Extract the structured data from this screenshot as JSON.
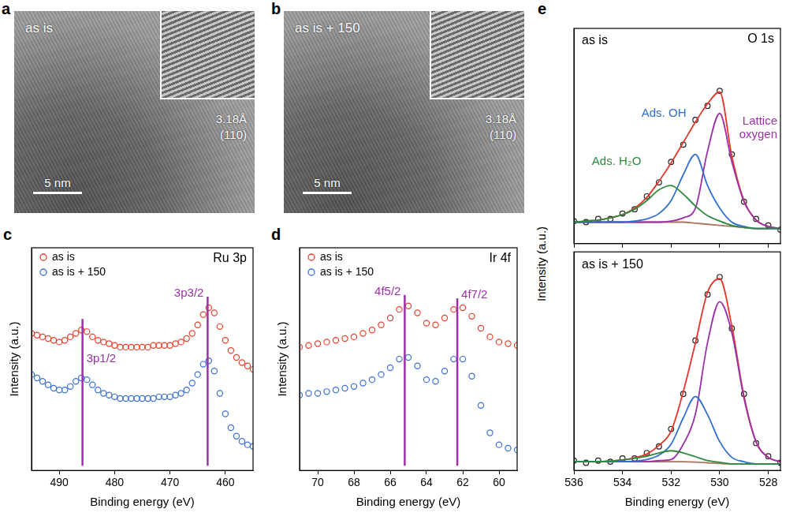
{
  "image_panels": [
    {
      "panel": "a",
      "label": "as is",
      "scale_bar": "5 nm",
      "inset_spacing": "3.18Å",
      "inset_plane": "(110)"
    },
    {
      "panel": "b",
      "label": "as is + 150",
      "scale_bar": "5 nm",
      "inset_spacing": "3.18Å",
      "inset_plane": "(110)"
    }
  ],
  "chart_data": [
    {
      "panel": "c",
      "type": "scatter",
      "title": "Ru 3p",
      "xlabel": "Binding energy (eV)",
      "ylabel": "Intensity (a.u.)",
      "x": [
        495,
        494,
        493,
        492,
        491,
        490,
        489,
        488,
        487,
        486,
        485,
        484,
        483,
        482,
        481,
        480,
        479,
        478,
        477,
        476,
        475,
        474,
        473,
        472,
        471,
        470,
        469,
        468,
        467,
        466,
        465,
        464,
        463,
        462,
        461,
        460,
        459,
        458,
        457,
        456,
        455
      ],
      "xlim": [
        495,
        455
      ],
      "xticks": [
        490,
        480,
        470,
        460
      ],
      "ylim": [
        0,
        130
      ],
      "grid": false,
      "tick_labels": "x",
      "legend": "upper left",
      "marker": "open circle",
      "series": [
        {
          "name": "as is",
          "color": "#e8402a",
          "values": [
            80,
            79,
            78,
            77,
            76,
            75,
            76,
            78,
            80,
            82,
            81,
            78,
            76,
            75,
            74,
            73,
            72,
            72,
            72,
            72,
            72,
            72,
            73,
            73,
            73,
            73,
            74,
            75,
            77,
            80,
            85,
            91,
            95,
            92,
            84,
            76,
            70,
            66,
            63,
            61,
            59
          ]
        },
        {
          "name": "as is + 150",
          "color": "#3a6fd6",
          "values": [
            56,
            54,
            52,
            50,
            48,
            47,
            47,
            49,
            52,
            54,
            53,
            50,
            47,
            45,
            44,
            43,
            42,
            42,
            42,
            42,
            42,
            42,
            42,
            43,
            43,
            43,
            44,
            45,
            47,
            51,
            56,
            62,
            64,
            58,
            45,
            33,
            25,
            20,
            17,
            15,
            14
          ]
        }
      ],
      "annotations": [
        {
          "x": 485.8,
          "text": "3p1/2",
          "color": "#9b30a8"
        },
        {
          "x": 463.2,
          "text": "3p3/2",
          "color": "#9b30a8"
        }
      ]
    },
    {
      "panel": "d",
      "type": "scatter",
      "title": "Ir 4f",
      "xlabel": "Binding energy (eV)",
      "ylabel": "Intensity (a.u.)",
      "x": [
        71,
        70.5,
        70,
        69.5,
        69,
        68.5,
        68,
        67.5,
        67,
        66.5,
        66,
        65.5,
        65,
        64.5,
        64,
        63.5,
        63,
        62.5,
        62,
        61.5,
        61,
        60.5,
        60,
        59.5,
        59
      ],
      "xlim": [
        71,
        59
      ],
      "xticks": [
        70,
        68,
        66,
        64,
        62,
        60
      ],
      "ylim": [
        0,
        130
      ],
      "grid": false,
      "tick_labels": "x",
      "legend": "upper left",
      "marker": "open circle",
      "series": [
        {
          "name": "as is",
          "color": "#e8402a",
          "values": [
            72,
            73,
            74,
            75,
            76,
            77,
            78,
            80,
            82,
            85,
            89,
            94,
            96,
            92,
            86,
            85,
            89,
            94,
            95,
            90,
            83,
            78,
            75,
            74,
            73
          ]
        },
        {
          "name": "as is + 150",
          "color": "#3a6fd6",
          "values": [
            44,
            45,
            45,
            46,
            47,
            48,
            49,
            51,
            53,
            56,
            60,
            65,
            66,
            61,
            53,
            52,
            58,
            65,
            65,
            55,
            38,
            22,
            15,
            13,
            12
          ]
        }
      ],
      "annotations": [
        {
          "x": 65.2,
          "text": "4f5/2",
          "color": "#9b30a8"
        },
        {
          "x": 62.3,
          "text": "4f7/2",
          "color": "#9b30a8"
        }
      ]
    },
    {
      "panel": "e",
      "type": "line",
      "title": "O 1s",
      "subtitle": "as is",
      "ylabel": "Intensity (a.u.)",
      "x": [
        536,
        535.5,
        535,
        534.5,
        534,
        533.5,
        533,
        532.5,
        532,
        531.5,
        531,
        530.5,
        530,
        529.5,
        529,
        528.5,
        528,
        527.5
      ],
      "xlim": [
        536,
        527.5
      ],
      "xticks": [
        536,
        534,
        532,
        530,
        528
      ],
      "ylim": [
        0,
        100
      ],
      "grid": false,
      "tick_labels": false,
      "series": [
        {
          "name": "Ads. H₂O",
          "color": "#2e8b3c",
          "type": "line",
          "line_style": "solid",
          "values": [
            10,
            10.5,
            11,
            12,
            13.5,
            16,
            20,
            25,
            27,
            23,
            17.5,
            13,
            10.5,
            8.5,
            7.5,
            7,
            7,
            7
          ]
        },
        {
          "name": "Ads. OH",
          "color": "#2f6fd0",
          "type": "line",
          "line_style": "solid",
          "values": [
            10,
            10,
            10,
            10,
            10,
            10.5,
            11.5,
            14,
            20,
            32,
            41.5,
            27,
            16.5,
            10,
            8,
            7,
            7,
            7
          ]
        },
        {
          "name": "Lattice oxygen",
          "color": "#9b30a8",
          "type": "line",
          "line_style": "solid",
          "values": [
            10,
            10,
            10,
            10,
            10,
            10,
            10,
            10,
            10.5,
            12,
            16.5,
            43,
            60.5,
            38,
            19.5,
            11,
            8,
            7
          ]
        },
        {
          "color": "#a9745f",
          "type": "line",
          "line_style": "solid",
          "values": [
            10,
            10,
            10,
            10,
            10,
            10,
            10,
            10,
            10,
            10,
            9.5,
            9,
            8.5,
            8,
            7.5,
            7,
            7,
            7
          ]
        },
        {
          "color": "#e8352b",
          "type": "line",
          "line_style": "solid",
          "values": [
            10,
            10.5,
            11,
            12,
            13.5,
            16.5,
            21.5,
            29,
            37.5,
            47,
            56.5,
            65,
            70.5,
            40.5,
            20,
            11,
            8,
            7
          ]
        },
        {
          "color": "#222222",
          "type": "scatter",
          "marker": "open circle",
          "values": [
            10.5,
            10,
            11.5,
            11.5,
            14,
            16,
            22,
            28.5,
            38,
            46,
            57.5,
            64,
            71,
            41.5,
            19.5,
            11.5,
            8.5,
            6.5
          ]
        }
      ]
    },
    {
      "type": "line",
      "subtitle": "as is + 150",
      "xlabel": "Binding energy (eV)",
      "x": [
        536,
        535.5,
        535,
        534.5,
        534,
        533.5,
        533,
        532.5,
        532,
        531.5,
        531,
        530.5,
        530,
        529.5,
        529,
        528.5,
        528,
        527.5
      ],
      "xlim": [
        536,
        527.5
      ],
      "xticks": [
        536,
        534,
        532,
        530,
        528
      ],
      "ylim": [
        0,
        100
      ],
      "grid": false,
      "tick_labels": "x",
      "series": [
        {
          "color": "#2e8b3c",
          "type": "line",
          "line_style": "solid",
          "values": [
            4,
            4,
            4,
            4.3,
            4.8,
            5.5,
            6.5,
            8,
            9,
            8,
            6.3,
            4.5,
            3.7,
            3,
            3,
            3,
            3,
            3
          ]
        },
        {
          "color": "#2f6fd0",
          "type": "line",
          "line_style": "solid",
          "values": [
            4,
            4,
            4,
            4,
            4,
            4.3,
            5,
            7,
            12,
            24,
            33.8,
            25.5,
            13.2,
            6,
            4,
            3,
            3,
            3
          ]
        },
        {
          "color": "#9b30a8",
          "type": "line",
          "line_style": "solid",
          "values": [
            4,
            4,
            4,
            4,
            4,
            4,
            4,
            4.5,
            5,
            12,
            25.8,
            58.5,
            77.2,
            63,
            33,
            13,
            6,
            4
          ]
        },
        {
          "color": "#a9745f",
          "type": "line",
          "line_style": "solid",
          "values": [
            4,
            4,
            4,
            4,
            4,
            4,
            4,
            4,
            4,
            4,
            3.8,
            3.5,
            3.2,
            3,
            3,
            3,
            3,
            3
          ]
        },
        {
          "color": "#e8352b",
          "type": "line",
          "line_style": "solid",
          "values": [
            4,
            4,
            4,
            4.3,
            4.8,
            5.8,
            7.5,
            11.5,
            18,
            36,
            58.3,
            81.5,
            87.7,
            66,
            34,
            13,
            6,
            4
          ]
        },
        {
          "color": "#222222",
          "type": "scatter",
          "marker": "open circle",
          "values": [
            4.5,
            3.5,
            4.5,
            4,
            5.5,
            5.5,
            8,
            11,
            19,
            35,
            59.5,
            80.5,
            88.5,
            65,
            35,
            12.5,
            6.5,
            3.5
          ]
        }
      ]
    }
  ]
}
